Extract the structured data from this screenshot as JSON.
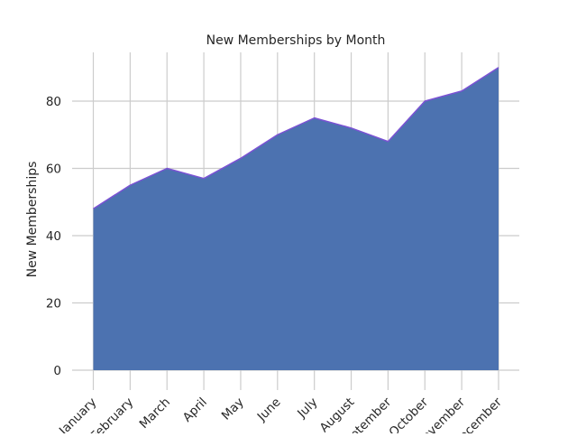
{
  "chart_data": {
    "type": "area",
    "title": "New Memberships by Month",
    "xlabel": "",
    "ylabel": "New Memberships",
    "categories": [
      "January",
      "February",
      "March",
      "April",
      "May",
      "June",
      "July",
      "August",
      "September",
      "October",
      "November",
      "December"
    ],
    "series": [
      {
        "values": [
          48,
          55,
          60,
          57,
          63,
          70,
          75,
          72,
          68,
          80,
          83,
          90
        ]
      }
    ],
    "ylim": [
      0,
      94
    ],
    "yticks": [
      0,
      20,
      40,
      60,
      80
    ],
    "grid": true,
    "fill_color": "#4c72b0",
    "line_color": "#7b52d4",
    "grid_color": "#cccccc"
  }
}
